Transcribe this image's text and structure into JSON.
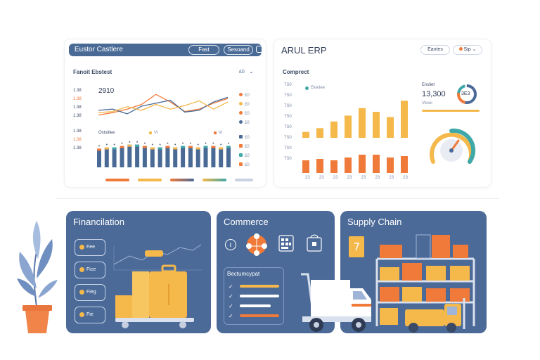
{
  "colors": {
    "navy": "#4a6a96",
    "orange": "#f07a3a",
    "yellow": "#f5b84a",
    "teal": "#3fa8a8",
    "blue": "#4b6a98"
  },
  "left_panel": {
    "header_title": "Eustor Castlere",
    "header_btn1": "Fast",
    "header_btn2": "Sesoand",
    "section_title": "Fanoit Ebstest",
    "section_tag": "£0",
    "chart_value": "2910",
    "y_ticks_top": [
      "1.38",
      "1.38",
      "1.38",
      "1.38"
    ],
    "y_ticks_bottom": [
      "1.38",
      "1.38",
      "1.38"
    ],
    "legend_top": [
      "£0",
      "£0",
      "£0",
      "£0",
      "£0"
    ],
    "legend_bottom": [
      "£0",
      "£0",
      "£0",
      "£0",
      "£0"
    ],
    "bar_label": "Ostsitiee",
    "bar_legend1": "Vi",
    "bar_legend2": "Vi"
  },
  "right_panel": {
    "header_title": "ARUL ERP",
    "header_btn1": "Eantes",
    "header_btn2": "Sip",
    "section_title": "Comprect",
    "legend_label": "Eketiee",
    "y_ticks": [
      "7S0",
      "7S0",
      "7S0",
      "7S0",
      "7S0",
      "7S0",
      "7S0",
      "7S0"
    ],
    "x_ticks": [
      "23",
      "23",
      "23",
      "23",
      "23",
      "23",
      "23",
      "23"
    ],
    "stat_label": "Ensliet",
    "stat_value": "13,300",
    "stat_sub": "Vesei",
    "gauge_value": "3E3"
  },
  "chart_data": [
    {
      "type": "line",
      "title": "",
      "series": [
        {
          "values": [
            20,
            24,
            30,
            38,
            55,
            42,
            26,
            30,
            40,
            48
          ]
        },
        {
          "values": [
            28,
            30,
            22,
            35,
            40,
            45,
            25,
            28,
            42,
            50
          ]
        },
        {
          "values": [
            24,
            26,
            34,
            28,
            38,
            30,
            36,
            44,
            30,
            42
          ]
        }
      ]
    },
    {
      "type": "bar",
      "title": "",
      "values": [
        14,
        15,
        15,
        16,
        17,
        17,
        16,
        15,
        15,
        16,
        15,
        16,
        16,
        15,
        16,
        16,
        15,
        16
      ]
    },
    {
      "type": "bar",
      "title": "",
      "series": [
        {
          "values": [
            8,
            13,
            22,
            30,
            40,
            35,
            28,
            50
          ]
        },
        {
          "values": [
            18,
            20,
            18,
            22,
            26,
            26,
            22,
            24
          ]
        }
      ]
    }
  ],
  "cards": {
    "finance": {
      "title": "Financilation",
      "items": [
        "Fee",
        "Fice",
        "Fieg",
        "Fie"
      ],
      "tag": ""
    },
    "commerce": {
      "title": "Commerce",
      "list_title": "Bectumcypat"
    },
    "supply": {
      "title": "Supply Chain"
    }
  }
}
